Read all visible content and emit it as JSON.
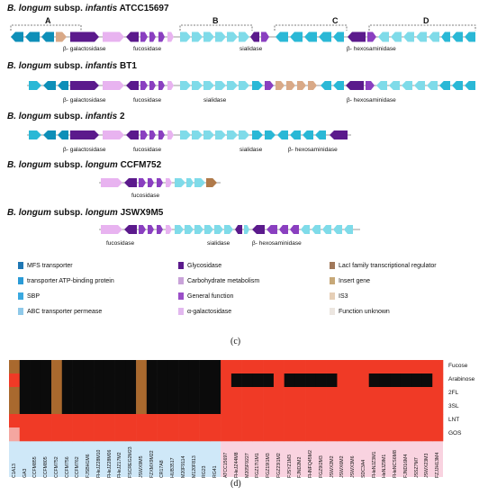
{
  "panel_c": {
    "label": "(c)",
    "strains": [
      {
        "species": "B. longum",
        "subsp": "subsp.",
        "subspecies": "infantis",
        "strain": "ATCC15697"
      },
      {
        "species": "B. longum",
        "subsp": "subsp.",
        "subspecies": "infantis",
        "strain": "BT1"
      },
      {
        "species": "B. longum",
        "subsp": "subsp.",
        "subspecies": "infantis",
        "strain": "2"
      },
      {
        "species": "B. longum",
        "subsp": "subsp.",
        "subspecies": "longum",
        "strain": "CCFM752"
      },
      {
        "species": "B. longum",
        "subsp": "subsp.",
        "subspecies": "longum",
        "strain": "JSWX9M5"
      }
    ],
    "section_letters": [
      "A",
      "B",
      "C",
      "D"
    ],
    "gene_labels": {
      "row1": [
        "β- galactosidase",
        "fucosidase",
        "sialidase",
        "β- hexosaminidase"
      ],
      "row2": [
        "β- galactosidase",
        "fucosidase",
        "sialidase",
        "β- hexosaminidase"
      ],
      "row3": [
        "β- galactosidase",
        "fucosidase",
        "sialidase",
        "β- hexosaminidase"
      ],
      "row4": [
        "fucosidase"
      ],
      "row5": [
        "fucosidase",
        "sialidase",
        "β- hexosaminidase"
      ]
    },
    "legend": [
      {
        "label": "MFS transporter",
        "color": "#1f77b4"
      },
      {
        "label": "transporter ATP-binding protein",
        "color": "#2a9bd7"
      },
      {
        "label": "SBP",
        "color": "#3aa9e0"
      },
      {
        "label": "ABC transporter permease",
        "color": "#8fc9e9"
      },
      {
        "label": "Glycosidase",
        "color": "#5b1a8c"
      },
      {
        "label": "Carbohydrate metabolism",
        "color": "#c9a3d9"
      },
      {
        "label": "General function",
        "color": "#9b4fc8"
      },
      {
        "label": "α-galactosidase",
        "color": "#e2b8ef"
      },
      {
        "label": "LacI family transcriptional regulator",
        "color": "#a0785a"
      },
      {
        "label": "Insert gene",
        "color": "#c7a878"
      },
      {
        "label": "IS3",
        "color": "#e6cfb7"
      },
      {
        "label": "Function unknown",
        "color": "#ece6e0"
      }
    ],
    "colors": {
      "cyan": "#2ab8d6",
      "teal": "#0e8fb8",
      "light_cyan": "#7fdbe9",
      "purple_dark": "#5b1a8c",
      "purple": "#8a3fc0",
      "pink": "#e8b3f0",
      "tan": "#d9a987",
      "brown": "#b07a4a"
    }
  },
  "panel_d": {
    "label": "(d)",
    "substrates": [
      "Fucose",
      "Arabinose",
      "2FL",
      "3SL",
      "LNT",
      "GOS"
    ],
    "strains": [
      "C1A13",
      "GA3",
      "CCFM855",
      "CCFM805",
      "CCFM752",
      "CCFM756",
      "CCFM762",
      "FJSBH1M6",
      "FHeJZ28M10",
      "FHeJZ28M06",
      "FHeJZ17M2",
      "FSCREG2M23",
      "JSWX9M5",
      "FZXMX9M22",
      "CR17A8",
      "HUB3517",
      "M20F9114",
      "M120F813",
      "RG23",
      "RG41",
      "ATCC15697",
      "FHeJZ44M8",
      "M205F9227",
      "FGZ17I1M1",
      "FGZ19I1M3",
      "FGZ23I1M2",
      "FJSYZ1M3",
      "FJND2M2",
      "FHNFQ45M2",
      "FGZ9I2M3",
      "JSWX2M2",
      "JSWX6M2",
      "JSWX3M6",
      "SDC3A4",
      "FHeNJZ3M1",
      "HeNJZ9M1",
      "FHeNCS6M8",
      "FJND16M4",
      "JSSZ7M7",
      "JSWX23M3",
      "FZJJH13M4"
    ],
    "group_colors": {
      "longum": "#cfe8f8",
      "infantis": "#f9d3e0"
    },
    "cell_colors": {
      "growth": "#f03a26",
      "no_growth": "#0b0b0b",
      "intermediate": "#a9692e",
      "pink": "#f4a6a0"
    }
  }
}
